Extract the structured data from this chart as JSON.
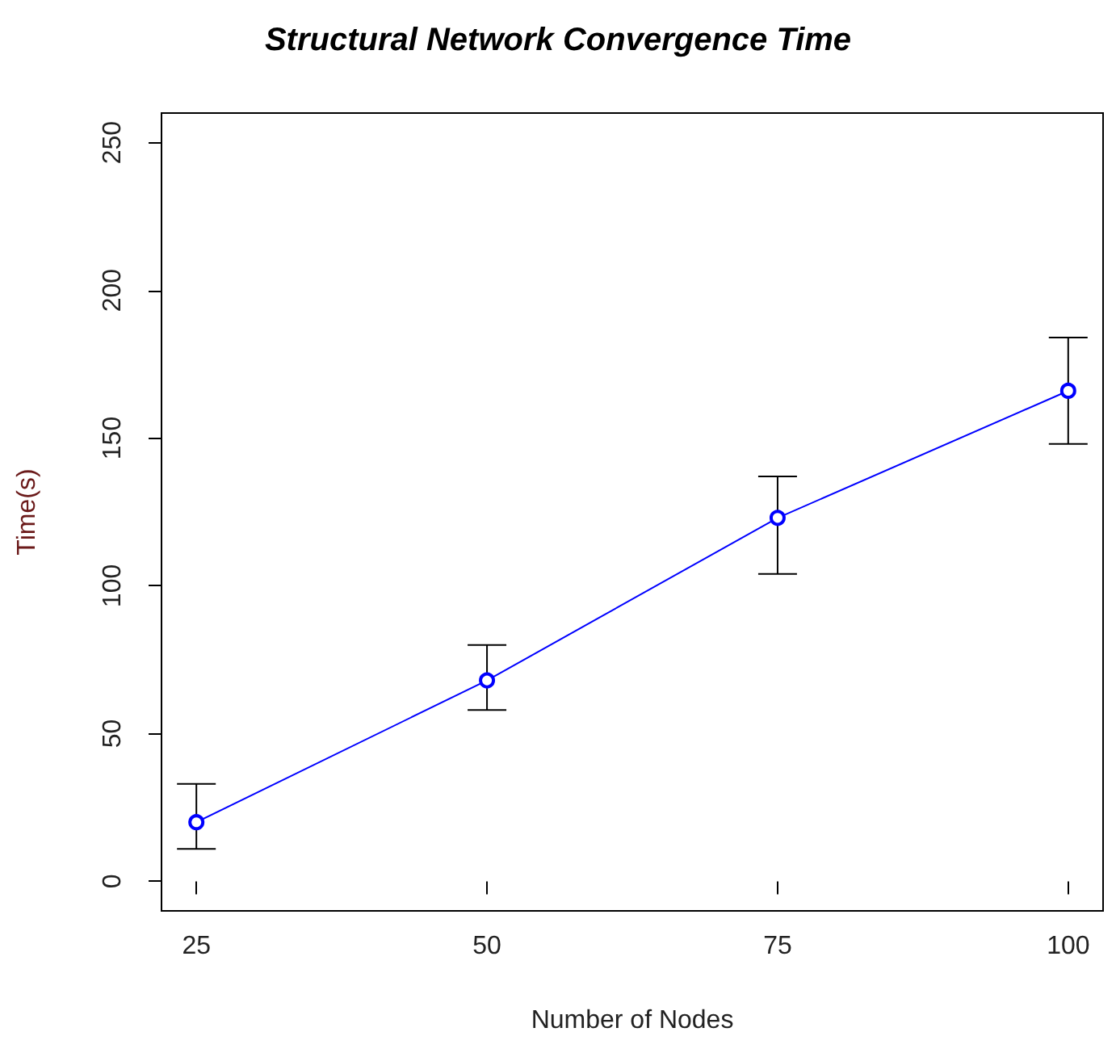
{
  "chart_data": {
    "type": "line",
    "title": "Structural Network Convergence Time",
    "xlabel": "Number of Nodes",
    "ylabel": "Time(s)",
    "x": [
      25,
      50,
      75,
      100
    ],
    "series": [
      {
        "color": "#0000ff",
        "values": [
          20,
          68,
          123,
          166
        ],
        "errors": [
          [
            11,
            33
          ],
          [
            58,
            80
          ],
          [
            104,
            137
          ],
          [
            148,
            184
          ]
        ]
      }
    ],
    "xlim": [
      22,
      103
    ],
    "ylim": [
      -10,
      260
    ],
    "xticks": [
      25,
      50,
      75,
      100
    ],
    "yticks": [
      0,
      50,
      100,
      150,
      200,
      250
    ],
    "marker": "circle",
    "line_style": "solid"
  }
}
